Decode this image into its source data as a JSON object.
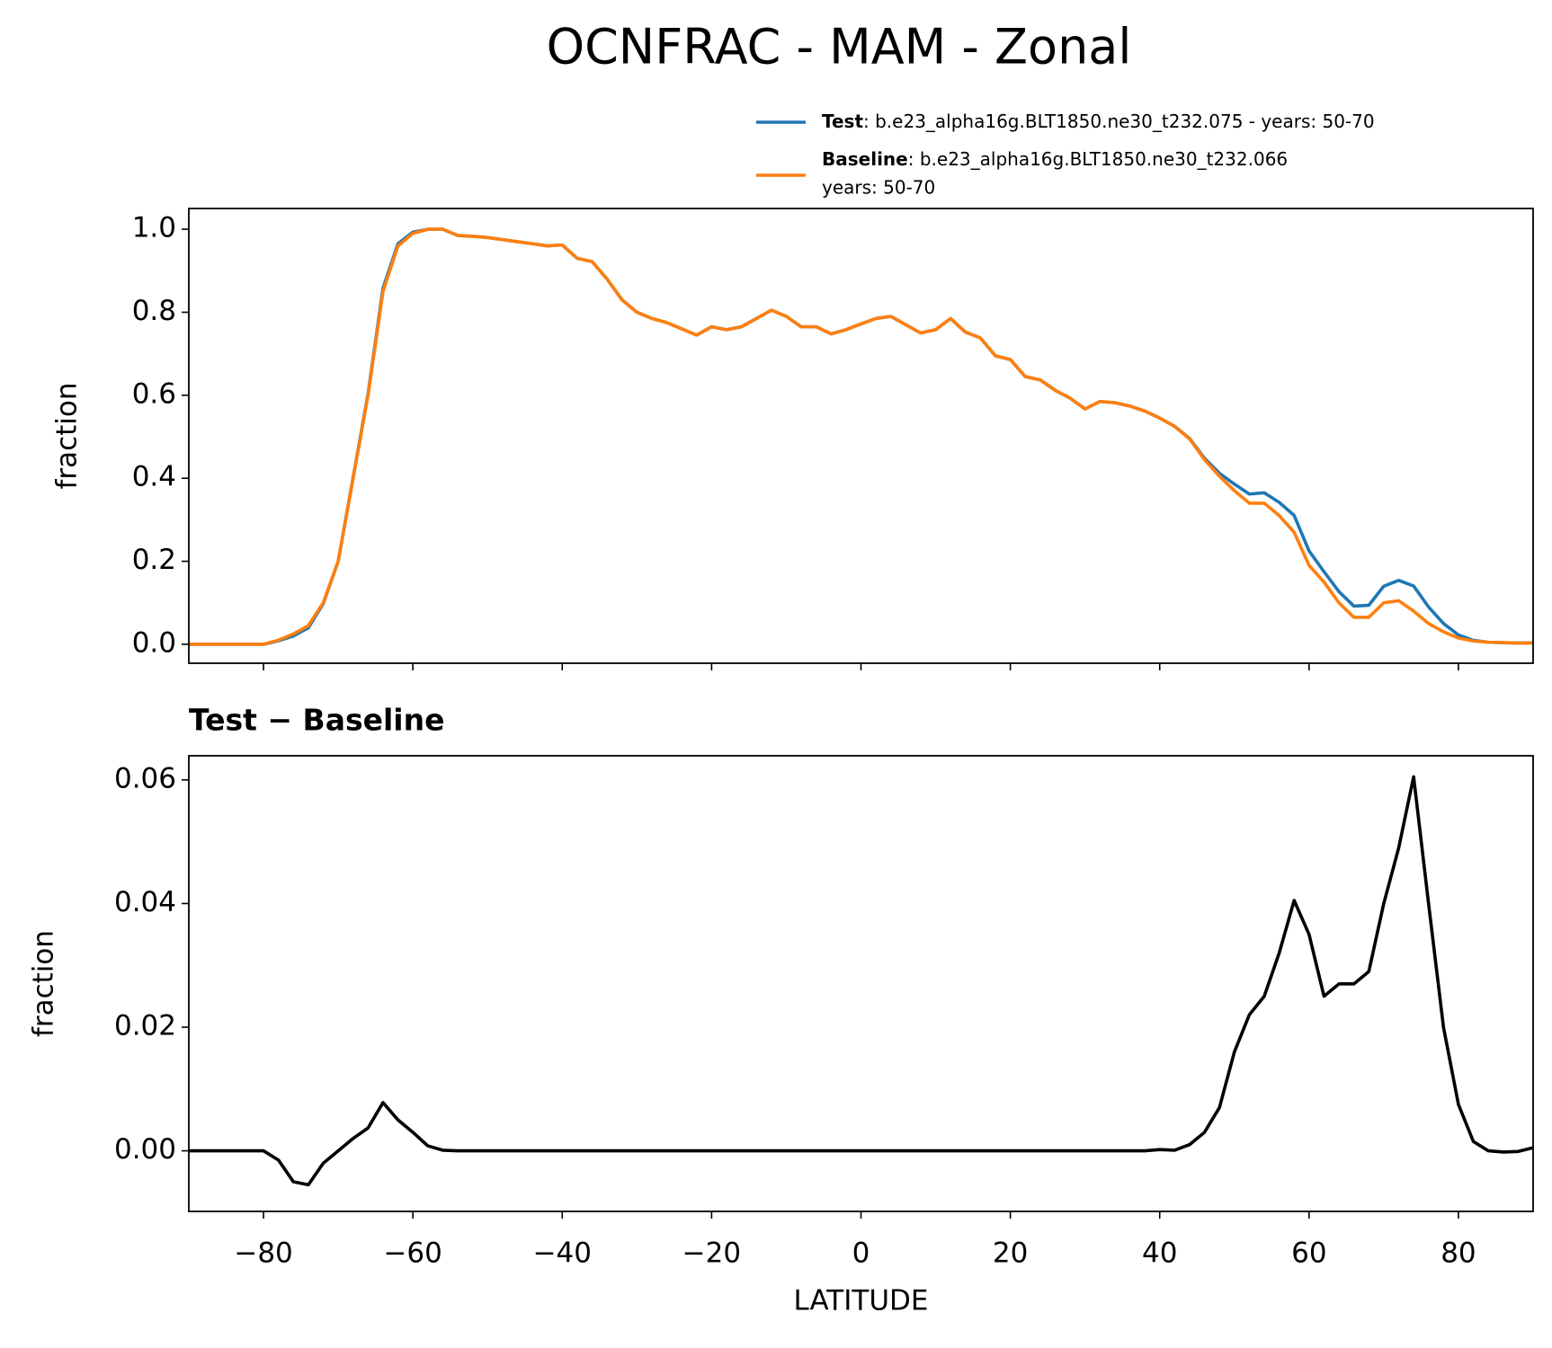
{
  "title": "OCNFRAC - MAM - Zonal",
  "chart_data": [
    {
      "type": "line",
      "ylabel": "fraction",
      "x": [
        -90,
        -88,
        -86,
        -84,
        -82,
        -80,
        -78,
        -76,
        -74,
        -72,
        -70,
        -68,
        -66,
        -64,
        -62,
        -60,
        -58,
        -56,
        -54,
        -52,
        -50,
        -48,
        -46,
        -44,
        -42,
        -40,
        -38,
        -36,
        -34,
        -32,
        -30,
        -28,
        -26,
        -24,
        -22,
        -20,
        -18,
        -16,
        -14,
        -12,
        -10,
        -8,
        -6,
        -4,
        -2,
        0,
        2,
        4,
        6,
        8,
        10,
        12,
        14,
        16,
        18,
        20,
        22,
        24,
        26,
        28,
        30,
        32,
        34,
        36,
        38,
        40,
        42,
        44,
        46,
        48,
        50,
        52,
        54,
        56,
        58,
        60,
        62,
        64,
        66,
        68,
        70,
        72,
        74,
        76,
        78,
        80,
        82,
        84,
        86,
        88,
        90
      ],
      "series": [
        {
          "name": "Test",
          "detail": [
            ": b.e23_alpha16g.BLT1850.ne30_t232.075 - years: 50-70"
          ],
          "color": "#1f77b4",
          "values": [
            0,
            0,
            0,
            0,
            0,
            0,
            0.0085,
            0.02,
            0.0395,
            0.098,
            0.2,
            0.402,
            0.6037,
            0.8578,
            0.965,
            0.993,
            1.0,
            1.0,
            0.985,
            0.983,
            0.98,
            0.975,
            0.97,
            0.965,
            0.96,
            0.962,
            0.93,
            0.922,
            0.88,
            0.83,
            0.8,
            0.785,
            0.775,
            0.76,
            0.745,
            0.765,
            0.758,
            0.765,
            0.785,
            0.805,
            0.79,
            0.765,
            0.765,
            0.748,
            0.758,
            0.772,
            0.785,
            0.79,
            0.77,
            0.75,
            0.758,
            0.785,
            0.752,
            0.738,
            0.695,
            0.686,
            0.645,
            0.637,
            0.612,
            0.593,
            0.567,
            0.585,
            0.582,
            0.574,
            0.562,
            0.5452,
            0.5251,
            0.496,
            0.448,
            0.412,
            0.386,
            0.362,
            0.365,
            0.342,
            0.3105,
            0.225,
            0.175,
            0.127,
            0.092,
            0.094,
            0.14,
            0.154,
            0.1405,
            0.09,
            0.05,
            0.0225,
            0.0095,
            0.005,
            0.0038,
            0.0029,
            0.0035
          ]
        },
        {
          "name": "Baseline",
          "detail": [
            ": b.e23_alpha16g.BLT1850.ne30_t232.066",
            "years: 50-70"
          ],
          "color": "#ff7f0e",
          "values": [
            0,
            0,
            0,
            0,
            0,
            0,
            0.01,
            0.025,
            0.045,
            0.1,
            0.2,
            0.4,
            0.6,
            0.85,
            0.96,
            0.99,
            1.0,
            1.0,
            0.985,
            0.983,
            0.98,
            0.975,
            0.97,
            0.965,
            0.96,
            0.962,
            0.93,
            0.922,
            0.88,
            0.83,
            0.8,
            0.785,
            0.775,
            0.76,
            0.745,
            0.765,
            0.758,
            0.765,
            0.785,
            0.805,
            0.79,
            0.765,
            0.765,
            0.748,
            0.758,
            0.772,
            0.785,
            0.79,
            0.77,
            0.75,
            0.758,
            0.785,
            0.752,
            0.738,
            0.695,
            0.686,
            0.645,
            0.637,
            0.612,
            0.593,
            0.567,
            0.585,
            0.582,
            0.574,
            0.562,
            0.545,
            0.525,
            0.495,
            0.445,
            0.405,
            0.37,
            0.34,
            0.34,
            0.31,
            0.27,
            0.19,
            0.15,
            0.1,
            0.065,
            0.065,
            0.1,
            0.105,
            0.08,
            0.05,
            0.03,
            0.015,
            0.008,
            0.005,
            0.004,
            0.003,
            0.003
          ]
        }
      ],
      "xlim": [
        -90,
        90
      ],
      "xticks": [
        -80,
        -60,
        -40,
        -20,
        0,
        20,
        40,
        60,
        80
      ],
      "ylim": [
        -0.0456,
        1.05
      ],
      "yticks": [
        {
          "value": 0,
          "label": "0.0"
        },
        {
          "value": 0.2,
          "label": "0.2"
        },
        {
          "value": 0.4,
          "label": "0.4"
        },
        {
          "value": 0.6,
          "label": "0.6"
        },
        {
          "value": 0.8,
          "label": "0.8"
        },
        {
          "value": 1,
          "label": "1.0"
        }
      ]
    },
    {
      "type": "line",
      "title": "Test − Baseline",
      "xlabel": "LATITUDE",
      "ylabel": "fraction",
      "x": [
        -90,
        -88,
        -86,
        -84,
        -82,
        -80,
        -78,
        -76,
        -74,
        -72,
        -70,
        -68,
        -66,
        -64,
        -62,
        -60,
        -58,
        -56,
        -54,
        -52,
        -50,
        -48,
        -46,
        -44,
        -42,
        -40,
        -38,
        -36,
        -34,
        -32,
        -30,
        -28,
        -26,
        -24,
        -22,
        -20,
        -18,
        -16,
        -14,
        -12,
        -10,
        -8,
        -6,
        -4,
        -2,
        0,
        2,
        4,
        6,
        8,
        10,
        12,
        14,
        16,
        18,
        20,
        22,
        24,
        26,
        28,
        30,
        32,
        34,
        36,
        38,
        40,
        42,
        44,
        46,
        48,
        50,
        52,
        54,
        56,
        58,
        60,
        62,
        64,
        66,
        68,
        70,
        72,
        74,
        76,
        78,
        80,
        82,
        84,
        86,
        88,
        90
      ],
      "series": [
        {
          "color": "#000000",
          "values": [
            0,
            0,
            0,
            0,
            0,
            0,
            -0.0015,
            -0.005,
            -0.0055,
            -0.002,
            0,
            0.002,
            0.0037,
            0.0078,
            0.005,
            0.003,
            0.0008,
            0.0001,
            0,
            0,
            0,
            0,
            0,
            0,
            0,
            0,
            0,
            0,
            0,
            0,
            0,
            0,
            0,
            0,
            0,
            0,
            0,
            0,
            0,
            0,
            0,
            0,
            0,
            0,
            0,
            0,
            0,
            0,
            0,
            0,
            0,
            0,
            0,
            0,
            0,
            0,
            0,
            0,
            0,
            0,
            0,
            0,
            0,
            0,
            0,
            0.0002,
            0.0001,
            0.001,
            0.003,
            0.007,
            0.016,
            0.022,
            0.025,
            0.032,
            0.0405,
            0.035,
            0.025,
            0.027,
            0.027,
            0.029,
            0.04,
            0.049,
            0.0605,
            0.04,
            0.02,
            0.0075,
            0.0015,
            0,
            -0.0002,
            -0.0001,
            0.0005
          ]
        }
      ],
      "xlim": [
        -90,
        90
      ],
      "xticks": [
        {
          "value": -80,
          "label": "−80"
        },
        {
          "value": -60,
          "label": "−60"
        },
        {
          "value": -40,
          "label": "−40"
        },
        {
          "value": -20,
          "label": "−20"
        },
        {
          "value": 0,
          "label": "0"
        },
        {
          "value": 20,
          "label": "20"
        },
        {
          "value": 40,
          "label": "40"
        },
        {
          "value": 60,
          "label": "60"
        },
        {
          "value": 80,
          "label": "80"
        }
      ],
      "ylim": [
        -0.0098,
        0.0639
      ],
      "yticks": [
        {
          "value": 0,
          "label": "0.00"
        },
        {
          "value": 0.02,
          "label": "0.02"
        },
        {
          "value": 0.04,
          "label": "0.04"
        },
        {
          "value": 0.06,
          "label": "0.06"
        }
      ]
    }
  ]
}
